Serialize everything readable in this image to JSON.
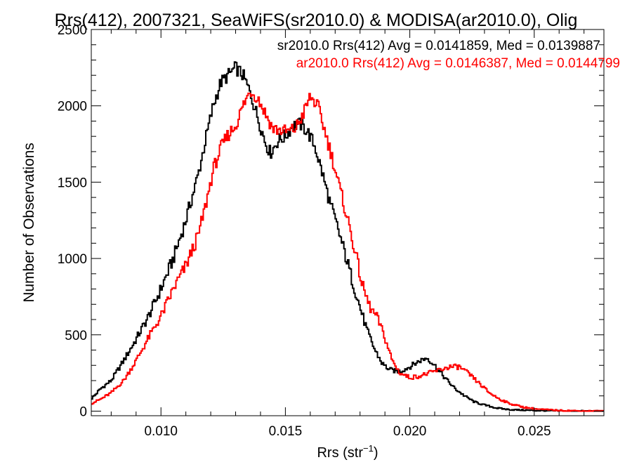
{
  "chart_data": {
    "type": "line",
    "step": true,
    "title": "Rrs(412), 2007321, SeaWiFS(sr2010.0) & MODISA(ar2010.0), Olig",
    "xlabel": "Rrs (str",
    "xlabel_sup": "−1",
    "xlabel_end": ")",
    "ylabel": "Number of Observations",
    "xlim": [
      0.0072,
      0.0278
    ],
    "ylim": [
      -30,
      2500
    ],
    "xticks": [
      0.01,
      0.015,
      0.02,
      0.025
    ],
    "xtick_labels": [
      "0.010",
      "0.015",
      "0.020",
      "0.025"
    ],
    "yticks": [
      0,
      500,
      1000,
      1500,
      2000,
      2500
    ],
    "ytick_labels": [
      "0",
      "500",
      "1000",
      "1500",
      "2000",
      "2500"
    ],
    "grid": false,
    "legend": {
      "placement": "top-right",
      "entries": [
        {
          "text": "sr2010.0 Rrs(412) Avg = 0.0141859, Med = 0.0139887",
          "color": "#000000"
        },
        {
          "text": "ar2010.0 Rrs(412) Avg = 0.0146387, Med = 0.0144799",
          "color": "#ff0000"
        }
      ]
    },
    "series": [
      {
        "name": "sr2010.0",
        "color": "#000000",
        "points": [
          [
            0.0072,
            80
          ],
          [
            0.0076,
            150
          ],
          [
            0.008,
            200
          ],
          [
            0.0085,
            330
          ],
          [
            0.009,
            470
          ],
          [
            0.0095,
            620
          ],
          [
            0.01,
            800
          ],
          [
            0.0105,
            1000
          ],
          [
            0.011,
            1250
          ],
          [
            0.0115,
            1550
          ],
          [
            0.0118,
            1780
          ],
          [
            0.0121,
            2000
          ],
          [
            0.0124,
            2150
          ],
          [
            0.0127,
            2200
          ],
          [
            0.013,
            2250
          ],
          [
            0.0133,
            2200
          ],
          [
            0.0136,
            2080
          ],
          [
            0.0139,
            1920
          ],
          [
            0.0142,
            1760
          ],
          [
            0.0144,
            1690
          ],
          [
            0.0147,
            1770
          ],
          [
            0.015,
            1800
          ],
          [
            0.0153,
            1870
          ],
          [
            0.0156,
            1880
          ],
          [
            0.0159,
            1830
          ],
          [
            0.0162,
            1730
          ],
          [
            0.0165,
            1550
          ],
          [
            0.0168,
            1360
          ],
          [
            0.0171,
            1200
          ],
          [
            0.0174,
            1030
          ],
          [
            0.0177,
            850
          ],
          [
            0.018,
            680
          ],
          [
            0.0183,
            520
          ],
          [
            0.0186,
            400
          ],
          [
            0.0189,
            310
          ],
          [
            0.0192,
            270
          ],
          [
            0.0196,
            260
          ],
          [
            0.02,
            290
          ],
          [
            0.0204,
            330
          ],
          [
            0.0207,
            350
          ],
          [
            0.021,
            300
          ],
          [
            0.0214,
            220
          ],
          [
            0.0218,
            150
          ],
          [
            0.0222,
            100
          ],
          [
            0.0226,
            60
          ],
          [
            0.023,
            40
          ],
          [
            0.0235,
            20
          ],
          [
            0.024,
            10
          ],
          [
            0.025,
            4
          ],
          [
            0.026,
            1
          ],
          [
            0.0278,
            0
          ]
        ]
      },
      {
        "name": "ar2010.0",
        "color": "#ff0000",
        "points": [
          [
            0.0072,
            50
          ],
          [
            0.0076,
            80
          ],
          [
            0.008,
            120
          ],
          [
            0.0085,
            200
          ],
          [
            0.009,
            330
          ],
          [
            0.0095,
            480
          ],
          [
            0.01,
            620
          ],
          [
            0.0105,
            800
          ],
          [
            0.011,
            950
          ],
          [
            0.0115,
            1150
          ],
          [
            0.0118,
            1350
          ],
          [
            0.0121,
            1580
          ],
          [
            0.0124,
            1720
          ],
          [
            0.0127,
            1810
          ],
          [
            0.013,
            1870
          ],
          [
            0.0133,
            2000
          ],
          [
            0.0136,
            2100
          ],
          [
            0.0139,
            2050
          ],
          [
            0.0142,
            1950
          ],
          [
            0.0145,
            1850
          ],
          [
            0.0148,
            1840
          ],
          [
            0.0151,
            1830
          ],
          [
            0.0154,
            1850
          ],
          [
            0.0157,
            1940
          ],
          [
            0.016,
            2060
          ],
          [
            0.0163,
            2000
          ],
          [
            0.0166,
            1830
          ],
          [
            0.0169,
            1650
          ],
          [
            0.0172,
            1450
          ],
          [
            0.0175,
            1260
          ],
          [
            0.0178,
            1050
          ],
          [
            0.0181,
            820
          ],
          [
            0.0184,
            680
          ],
          [
            0.0187,
            610
          ],
          [
            0.019,
            480
          ],
          [
            0.0193,
            330
          ],
          [
            0.0196,
            250
          ],
          [
            0.02,
            220
          ],
          [
            0.0204,
            230
          ],
          [
            0.0208,
            250
          ],
          [
            0.0212,
            270
          ],
          [
            0.0216,
            290
          ],
          [
            0.022,
            290
          ],
          [
            0.0224,
            240
          ],
          [
            0.0228,
            180
          ],
          [
            0.0232,
            120
          ],
          [
            0.0236,
            80
          ],
          [
            0.024,
            50
          ],
          [
            0.0246,
            25
          ],
          [
            0.0252,
            12
          ],
          [
            0.026,
            5
          ],
          [
            0.027,
            1
          ],
          [
            0.0278,
            0
          ]
        ]
      }
    ]
  }
}
